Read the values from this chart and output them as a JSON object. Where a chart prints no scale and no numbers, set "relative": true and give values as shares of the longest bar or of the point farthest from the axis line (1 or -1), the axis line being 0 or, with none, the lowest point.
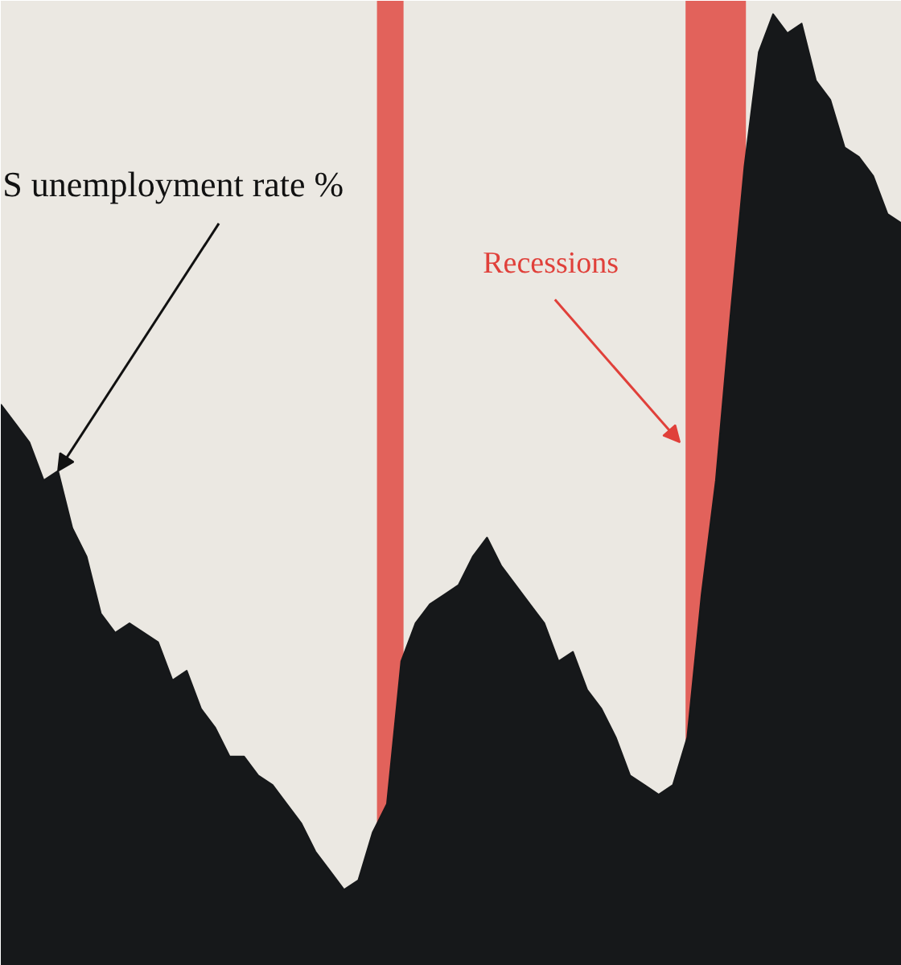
{
  "chart_data": {
    "type": "area",
    "relative": true,
    "tick_labels": false,
    "grid": false,
    "categories": [
      null,
      null,
      null,
      null,
      null,
      null,
      null,
      null,
      null,
      null,
      null,
      null,
      null,
      null,
      null,
      null,
      null,
      null,
      null,
      null,
      null,
      null,
      null,
      null,
      null,
      null,
      null,
      null,
      null,
      null,
      null,
      null,
      null,
      null,
      null,
      null,
      null,
      null,
      null,
      null,
      null,
      null,
      null,
      null,
      null,
      null,
      null,
      null,
      null,
      null,
      null,
      null,
      null,
      null,
      null,
      null,
      null,
      null,
      null,
      null,
      null,
      null,
      null,
      null
    ],
    "series": [
      {
        "color": "#16181a",
        "values": [
          0.59,
          0.57,
          0.55,
          0.51,
          0.52,
          0.46,
          0.43,
          0.37,
          0.35,
          0.36,
          0.35,
          0.34,
          0.3,
          0.31,
          0.27,
          0.25,
          0.22,
          0.22,
          0.2,
          0.19,
          0.17,
          0.15,
          0.12,
          0.1,
          0.08,
          0.09,
          0.14,
          0.17,
          0.32,
          0.36,
          0.38,
          0.39,
          0.4,
          0.43,
          0.45,
          0.42,
          0.4,
          0.38,
          0.36,
          0.32,
          0.33,
          0.29,
          0.27,
          0.24,
          0.2,
          0.19,
          0.18,
          0.19,
          0.24,
          0.39,
          0.51,
          0.68,
          0.84,
          0.96,
          1,
          0.98,
          0.99,
          0.93,
          0.91,
          0.86,
          0.85,
          0.83,
          0.79,
          0.78
        ]
      }
    ],
    "annotations": [
      "S unemployment rate %",
      "Recessions"
    ]
  }
}
